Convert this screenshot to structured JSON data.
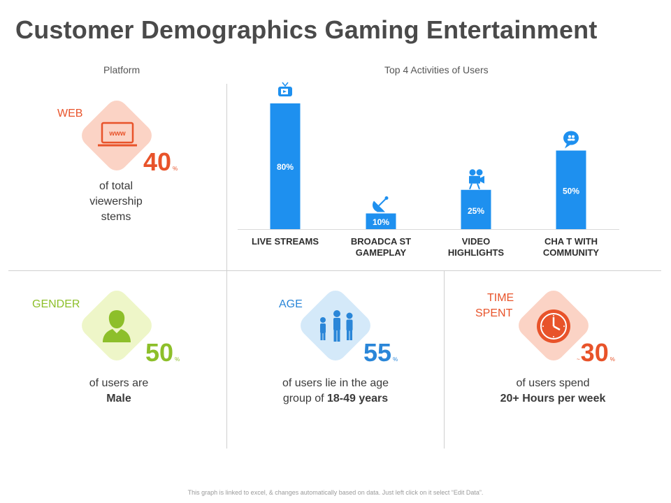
{
  "title": "Customer Demographics Gaming Entertainment",
  "platform": {
    "section_label": "Platform",
    "label": "WEB",
    "value": "40",
    "unit": "%",
    "desc_line1": "of total",
    "desc_line2": "viewership",
    "desc_line3": "stems",
    "icon": "laptop-www-icon",
    "icon_text": "www"
  },
  "gender": {
    "label": "GENDER",
    "value": "50",
    "unit": "%",
    "desc_line1": "of users are",
    "desc_bold": "Male",
    "icon": "male-user-icon"
  },
  "age": {
    "label": "AGE",
    "value": "55",
    "unit": "%",
    "desc_line1": "of users lie in the age",
    "desc_line2_prefix": "group of ",
    "desc_bold": "18-49 years",
    "icon": "family-icon"
  },
  "time_spent": {
    "label_line1": "TIME",
    "label_line2": "SPENT",
    "prefix": "~",
    "value": "30",
    "unit": "%",
    "desc_line1": "of users spend",
    "desc_bold": "20+ Hours per week",
    "icon": "clock-icon"
  },
  "colors": {
    "web": "#e8532a",
    "web_bg": "#fbd3c5",
    "gender": "#8dbf2a",
    "gender_bg": "#eef6c8",
    "age": "#2a86d8",
    "age_bg": "#d4e9f9",
    "time": "#e8532a",
    "time_bg": "#fbd3c5",
    "bar": "#1e90ef"
  },
  "chart_data": {
    "type": "bar",
    "title": "Top 4 Activities of Users",
    "categories": [
      "LIVE STREAMS",
      "BROADCA ST|GAMEPLAY",
      "VIDEO|HIGHLIGHTS",
      "CHA T WITH|COMMUNITY"
    ],
    "values": [
      80,
      10,
      25,
      50
    ],
    "value_labels": [
      "80%",
      "10%",
      "25%",
      "50%"
    ],
    "icons": [
      "tv-icon",
      "satellite-icon",
      "video-camera-icon",
      "chat-icon"
    ],
    "ylim": [
      0,
      100
    ],
    "grid": false,
    "xlabel": "",
    "ylabel": ""
  },
  "footnote": "This graph is linked to excel, & changes automatically based on data. Just left click on it select “Edit Data”."
}
